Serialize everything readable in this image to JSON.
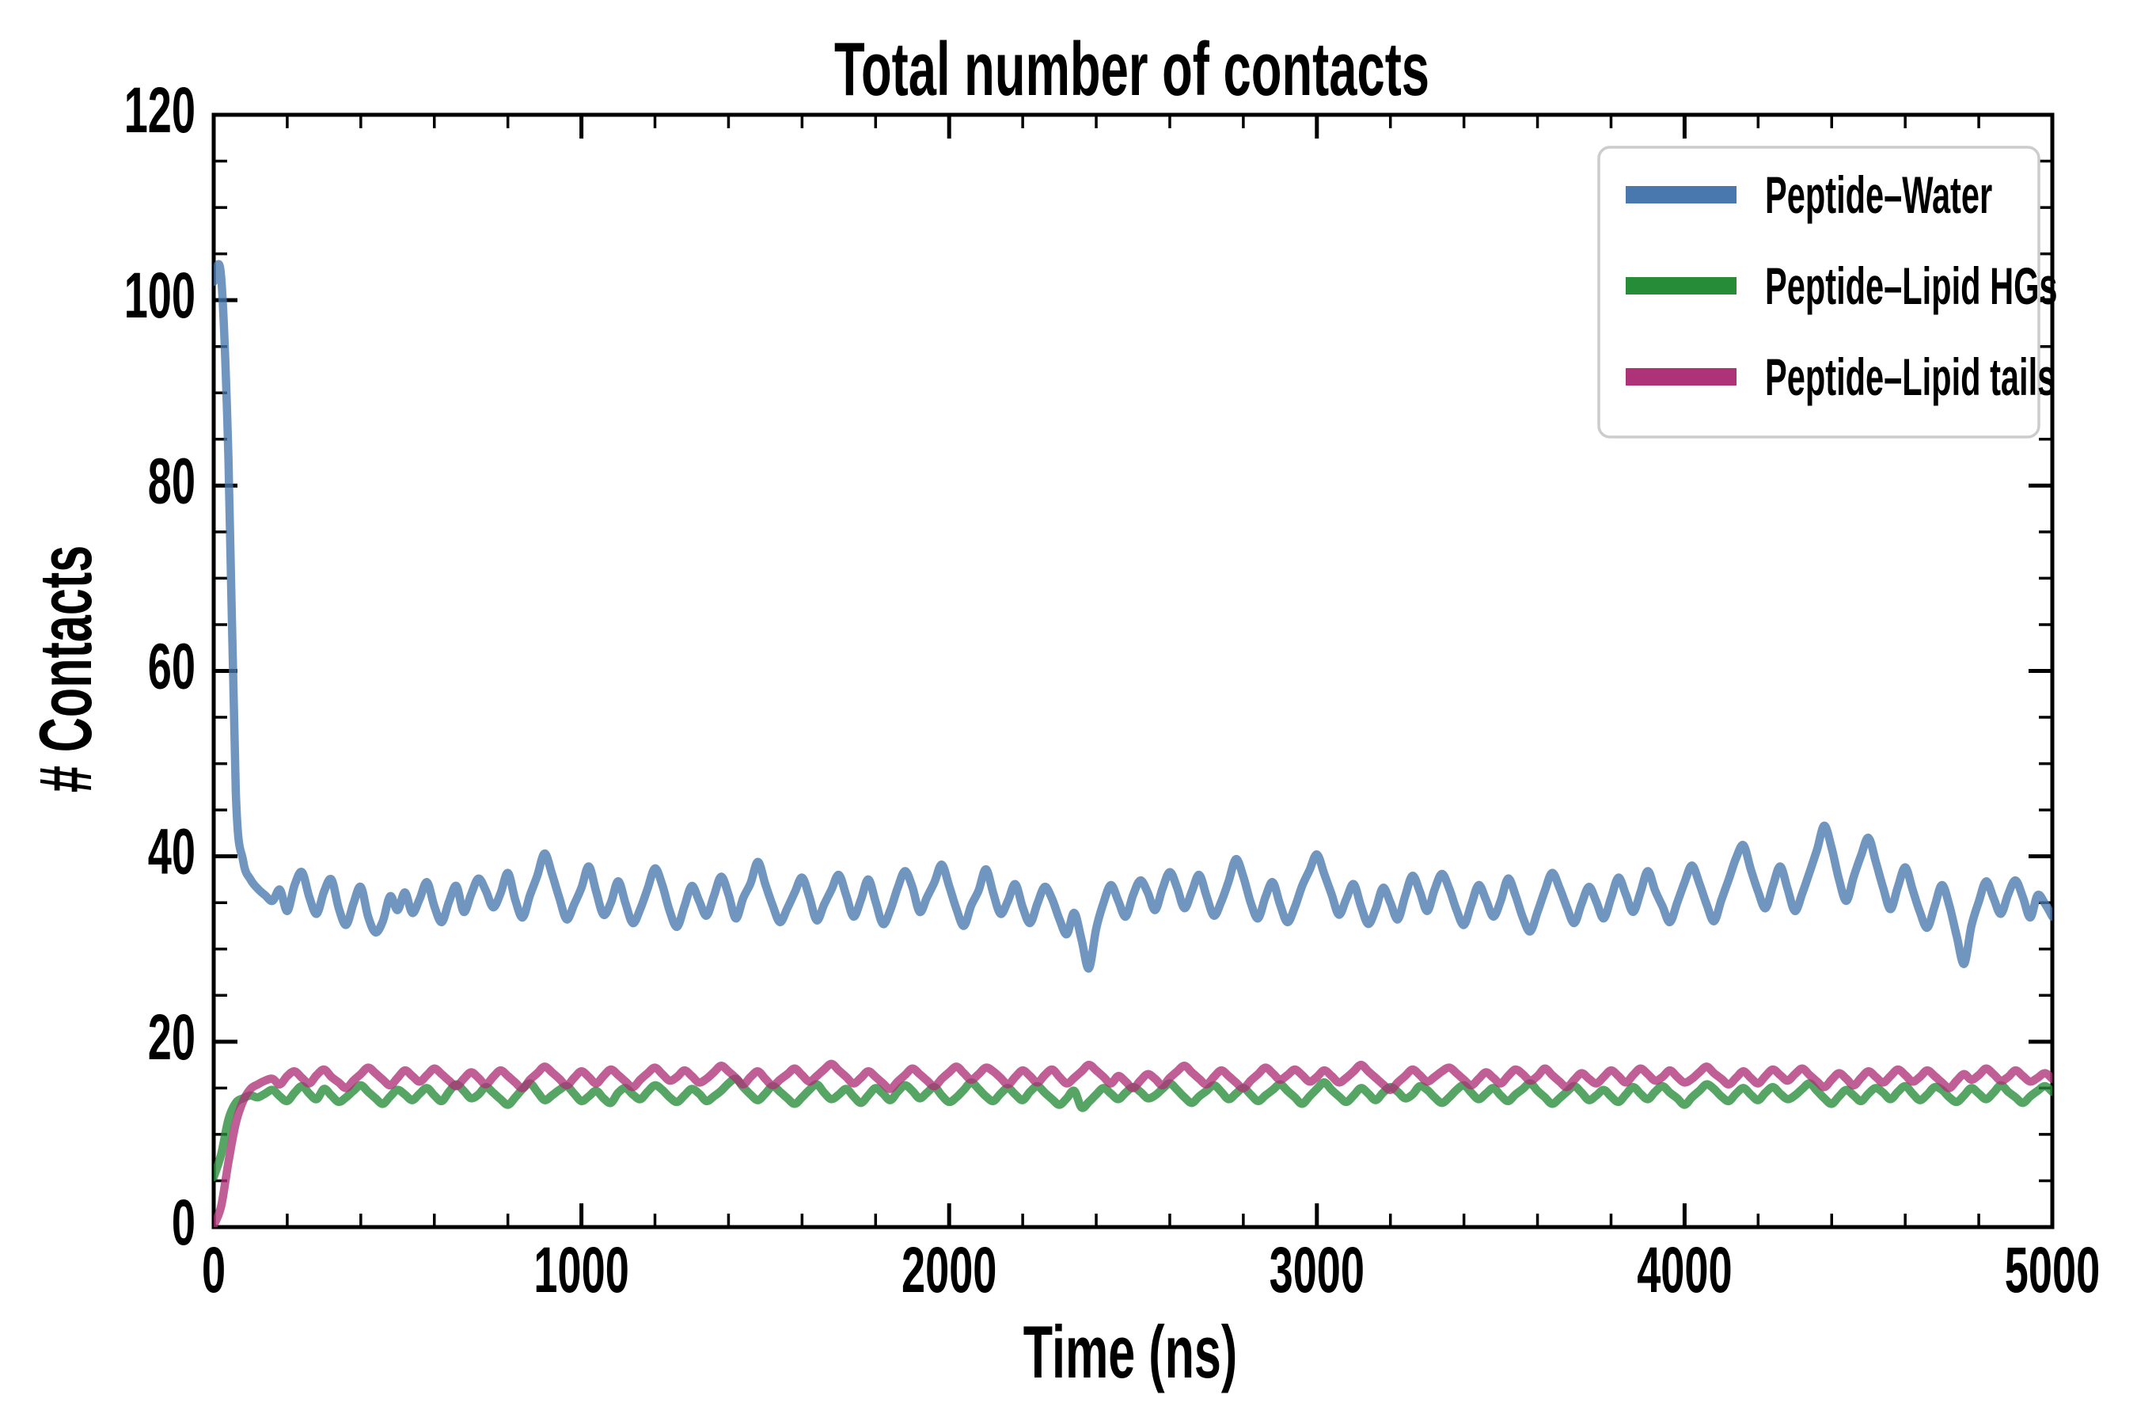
{
  "figure": {
    "background": "#ffffff",
    "text_color": "#000000"
  },
  "chart_data": {
    "type": "line",
    "title": "Total number of contacts",
    "xlabel": "Time (ns)",
    "ylabel": "# Contacts",
    "xlim": [
      0,
      5000
    ],
    "ylim": [
      0,
      120
    ],
    "x_major_ticks": [
      0,
      1000,
      2000,
      3000,
      4000,
      5000
    ],
    "x_minor_tick_step": 200,
    "y_major_ticks": [
      0,
      20,
      40,
      60,
      80,
      100,
      120
    ],
    "y_minor_tick_step": 5,
    "grid": false,
    "legend_position": "upper right",
    "legend_border_color": "#cccccc",
    "axis_color": "#000000",
    "line_opacity": 0.78,
    "line_width": 10.5,
    "x_start": 0,
    "x_step": 20,
    "series": [
      {
        "name": "Peptide–Water",
        "color": "#4878AD",
        "values": [
          102.0,
          102.6,
          83.0,
          47.0,
          39.5,
          37.5,
          36.5,
          35.8,
          35.2,
          36.4,
          34.1,
          36.9,
          38.3,
          35.6,
          33.8,
          36.2,
          37.5,
          34.4,
          32.6,
          34.9,
          36.7,
          33.5,
          31.8,
          33.0,
          35.7,
          34.2,
          36.1,
          33.9,
          35.4,
          37.2,
          34.6,
          32.9,
          35.1,
          36.8,
          34.0,
          35.9,
          37.6,
          36.3,
          34.5,
          36.0,
          38.2,
          35.3,
          33.4,
          35.8,
          37.9,
          40.3,
          38.1,
          35.5,
          33.2,
          34.8,
          36.6,
          38.9,
          36.2,
          33.7,
          35.0,
          37.3,
          34.9,
          32.8,
          34.3,
          36.5,
          38.7,
          36.9,
          34.1,
          32.4,
          34.6,
          36.8,
          35.2,
          33.6,
          35.7,
          37.8,
          35.9,
          33.3,
          35.5,
          37.1,
          39.4,
          37.0,
          34.7,
          32.9,
          34.4,
          36.1,
          37.7,
          35.6,
          33.1,
          34.8,
          36.4,
          38.0,
          35.8,
          33.5,
          35.3,
          37.5,
          35.1,
          32.7,
          34.2,
          36.6,
          38.4,
          36.7,
          34.0,
          35.6,
          37.2,
          39.1,
          36.8,
          34.3,
          32.5,
          34.7,
          36.3,
          38.6,
          36.0,
          33.8,
          35.2,
          37.0,
          34.5,
          32.8,
          34.9,
          36.7,
          35.4,
          33.2,
          31.6,
          33.9,
          31.0,
          27.9,
          32.2,
          35.0,
          36.9,
          35.2,
          33.5,
          35.8,
          37.4,
          36.1,
          34.2,
          36.5,
          38.3,
          36.6,
          34.4,
          36.2,
          38.0,
          35.7,
          33.6,
          35.1,
          37.3,
          39.7,
          37.8,
          35.0,
          33.3,
          35.6,
          37.2,
          34.8,
          32.9,
          34.5,
          36.8,
          38.5,
          40.2,
          38.1,
          35.9,
          33.7,
          35.4,
          37.0,
          34.6,
          32.7,
          34.3,
          36.6,
          35.0,
          33.2,
          35.7,
          37.9,
          36.2,
          34.1,
          36.4,
          38.1,
          36.5,
          34.2,
          32.6,
          34.8,
          36.9,
          35.3,
          33.5,
          35.2,
          37.6,
          35.8,
          33.4,
          31.9,
          34.0,
          36.3,
          38.2,
          36.6,
          34.5,
          32.8,
          34.9,
          36.7,
          35.1,
          33.3,
          35.5,
          37.7,
          35.9,
          34.0,
          36.1,
          38.4,
          36.3,
          34.6,
          32.9,
          35.0,
          37.2,
          39.0,
          37.1,
          34.8,
          33.0,
          35.3,
          37.5,
          39.8,
          41.2,
          38.6,
          36.2,
          34.4,
          36.8,
          38.9,
          36.5,
          34.1,
          36.0,
          38.3,
          40.7,
          43.3,
          40.9,
          37.5,
          35.2,
          37.8,
          40.1,
          42.0,
          39.4,
          36.6,
          34.3,
          36.7,
          38.8,
          36.4,
          34.0,
          32.3,
          34.6,
          36.9,
          34.7,
          31.4,
          28.4,
          32.5,
          35.1,
          37.3,
          35.5,
          33.8,
          35.9,
          37.4,
          35.6,
          33.4,
          35.8,
          34.9,
          33.5
        ]
      },
      {
        "name": "Peptide–Lipid HGs",
        "color": "#268C38",
        "values": [
          5.4,
          7.8,
          11.6,
          13.4,
          13.9,
          14.2,
          14.0,
          14.4,
          14.8,
          14.1,
          13.6,
          14.5,
          15.2,
          14.4,
          13.8,
          14.9,
          14.2,
          13.5,
          14.0,
          14.7,
          15.3,
          14.6,
          13.9,
          13.3,
          14.1,
          14.8,
          14.3,
          13.7,
          14.4,
          15.0,
          14.2,
          13.6,
          14.6,
          15.4,
          14.7,
          13.9,
          14.3,
          15.1,
          14.5,
          13.8,
          13.2,
          14.0,
          14.9,
          15.5,
          14.6,
          13.7,
          14.2,
          14.8,
          15.2,
          14.4,
          13.6,
          14.1,
          14.7,
          13.9,
          13.4,
          14.5,
          15.0,
          14.3,
          13.8,
          14.6,
          15.3,
          14.8,
          14.0,
          13.5,
          14.2,
          14.9,
          14.4,
          13.6,
          14.1,
          14.7,
          15.5,
          16.0,
          15.1,
          14.3,
          13.7,
          14.4,
          15.2,
          14.6,
          13.9,
          13.3,
          14.0,
          14.8,
          15.4,
          14.5,
          13.8,
          14.3,
          14.9,
          14.1,
          13.4,
          14.2,
          15.0,
          14.4,
          13.7,
          14.6,
          15.3,
          14.7,
          13.9,
          14.5,
          15.1,
          14.2,
          13.5,
          14.0,
          14.8,
          15.6,
          14.9,
          14.1,
          13.6,
          14.4,
          15.0,
          14.3,
          13.7,
          14.6,
          15.2,
          14.5,
          13.8,
          13.2,
          13.9,
          14.7,
          12.9,
          13.5,
          14.3,
          15.0,
          14.4,
          13.8,
          14.5,
          15.1,
          14.6,
          13.9,
          14.2,
          14.9,
          15.5,
          14.8,
          14.0,
          13.4,
          14.1,
          14.7,
          15.3,
          14.6,
          13.8,
          14.4,
          15.0,
          14.3,
          13.6,
          14.2,
          14.8,
          15.4,
          14.7,
          14.0,
          13.3,
          14.1,
          14.9,
          15.6,
          14.8,
          14.1,
          13.5,
          14.2,
          15.0,
          14.4,
          13.7,
          14.5,
          15.1,
          14.6,
          13.9,
          14.3,
          15.2,
          14.8,
          14.0,
          13.4,
          14.0,
          14.8,
          15.3,
          14.5,
          13.8,
          14.4,
          15.0,
          14.2,
          13.6,
          14.3,
          14.9,
          15.5,
          14.7,
          14.0,
          13.3,
          13.9,
          14.6,
          15.2,
          14.5,
          13.7,
          14.2,
          14.8,
          14.1,
          13.5,
          14.3,
          15.1,
          14.4,
          13.8,
          14.6,
          15.2,
          14.5,
          13.9,
          13.2,
          14.0,
          14.7,
          15.4,
          14.9,
          14.1,
          13.6,
          14.4,
          15.0,
          14.3,
          13.7,
          14.5,
          15.1,
          14.4,
          13.8,
          14.2,
          14.9,
          15.5,
          14.7,
          13.9,
          13.3,
          14.1,
          14.8,
          14.2,
          13.6,
          14.4,
          15.0,
          14.5,
          13.8,
          14.6,
          15.2,
          14.4,
          13.7,
          14.3,
          15.1,
          14.8,
          14.0,
          13.5,
          14.2,
          15.0,
          14.4,
          13.8,
          14.5,
          15.3,
          14.6,
          14.0,
          13.4,
          14.1,
          14.7,
          15.2,
          14.6
        ]
      },
      {
        "name": "Peptide–Lipid tails",
        "color": "#AD3277",
        "values": [
          0.2,
          2.2,
          7.0,
          11.2,
          13.6,
          14.9,
          15.4,
          15.8,
          16.0,
          15.4,
          16.3,
          16.8,
          16.1,
          15.5,
          16.4,
          17.0,
          16.2,
          15.6,
          15.0,
          15.8,
          16.5,
          17.2,
          16.6,
          15.9,
          15.3,
          16.1,
          16.9,
          16.3,
          15.7,
          16.4,
          17.1,
          16.5,
          15.8,
          15.2,
          16.0,
          16.7,
          16.1,
          15.4,
          16.2,
          16.9,
          16.3,
          15.6,
          15.0,
          15.9,
          16.6,
          17.3,
          16.7,
          16.0,
          15.3,
          16.1,
          16.8,
          16.2,
          15.5,
          16.3,
          17.0,
          16.4,
          15.7,
          15.1,
          15.9,
          16.6,
          17.2,
          16.5,
          15.8,
          16.2,
          16.9,
          16.3,
          15.6,
          16.0,
          16.7,
          17.4,
          16.8,
          16.1,
          15.4,
          16.2,
          16.8,
          16.0,
          15.3,
          15.9,
          16.5,
          17.1,
          16.4,
          15.7,
          16.3,
          17.0,
          17.6,
          16.9,
          16.2,
          15.5,
          16.1,
          16.8,
          16.2,
          15.5,
          14.9,
          15.7,
          16.4,
          17.1,
          16.5,
          15.8,
          15.2,
          16.0,
          16.7,
          17.3,
          16.6,
          15.9,
          16.5,
          17.2,
          16.8,
          16.1,
          15.4,
          16.2,
          16.9,
          16.3,
          15.6,
          16.4,
          17.0,
          16.2,
          15.5,
          16.1,
          16.8,
          17.5,
          16.9,
          16.2,
          15.5,
          16.3,
          15.7,
          15.0,
          15.8,
          16.5,
          16.0,
          15.3,
          16.1,
          16.8,
          17.4,
          16.7,
          16.0,
          15.4,
          16.2,
          16.9,
          16.3,
          15.6,
          15.0,
          15.8,
          16.5,
          17.2,
          16.6,
          15.9,
          16.4,
          17.0,
          16.4,
          15.7,
          16.2,
          16.9,
          16.3,
          15.6,
          16.1,
          16.8,
          17.5,
          16.8,
          16.1,
          15.4,
          14.8,
          15.6,
          16.3,
          17.0,
          16.4,
          15.7,
          16.2,
          16.8,
          17.2,
          16.6,
          15.9,
          15.3,
          16.0,
          16.7,
          16.1,
          15.5,
          16.3,
          17.0,
          16.5,
          15.8,
          16.3,
          17.1,
          16.4,
          15.7,
          15.1,
          15.9,
          16.6,
          16.0,
          15.5,
          16.2,
          16.9,
          16.3,
          15.6,
          16.4,
          17.1,
          16.5,
          15.8,
          16.2,
          16.9,
          16.2,
          15.6,
          16.0,
          16.7,
          17.3,
          16.6,
          16.0,
          15.4,
          16.1,
          16.8,
          16.1,
          15.5,
          16.3,
          17.0,
          16.4,
          15.8,
          16.5,
          17.1,
          16.4,
          15.7,
          15.1,
          15.9,
          16.6,
          16.0,
          15.3,
          16.1,
          16.8,
          16.2,
          15.6,
          16.3,
          17.0,
          16.4,
          15.7,
          16.2,
          16.9,
          16.3,
          15.6,
          15.0,
          15.8,
          16.5,
          15.9,
          16.4,
          17.1,
          16.5,
          15.8,
          16.2,
          16.9,
          16.3,
          15.7,
          16.1,
          16.6,
          16.0
        ]
      }
    ]
  }
}
